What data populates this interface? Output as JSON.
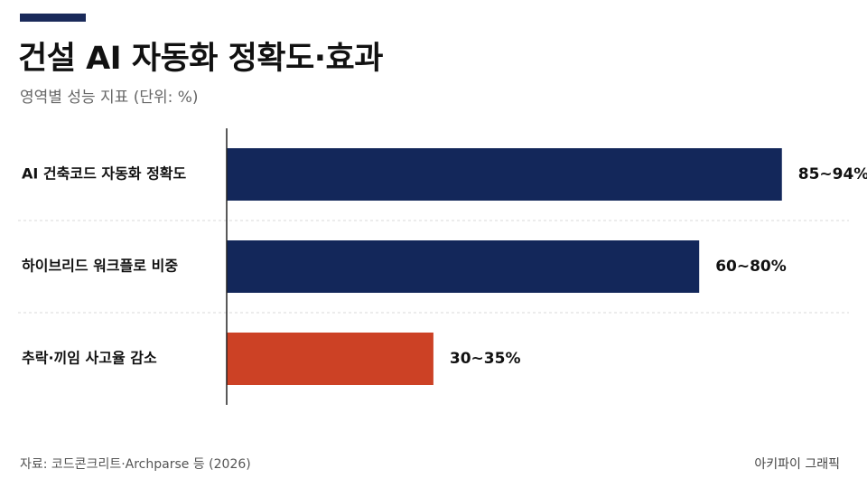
{
  "header": {
    "title": "건설 AI 자동화 정확도·효과",
    "subtitle": "영역별 성능 지표 (단위: %)"
  },
  "colors": {
    "navy": "#13275a",
    "red": "#cc4125",
    "accent": "#1a2a5a"
  },
  "chart_data": {
    "type": "bar",
    "orientation": "horizontal",
    "categories": [
      "AI 건축코드 자동화 정확도",
      "하이브리드 워크플로 비중",
      "추락·끼임 사고율 감소"
    ],
    "ranges": [
      [
        85,
        94
      ],
      [
        60,
        80
      ],
      [
        30,
        35
      ]
    ],
    "values": [
      94,
      80,
      35
    ],
    "value_labels": [
      "85~94%",
      "60~80%",
      "30~35%"
    ],
    "bar_colors": [
      "#13275a",
      "#13275a",
      "#cc4125"
    ],
    "xlim": [
      0,
      100
    ],
    "grid": "horizontal dashed separators",
    "legend": "none"
  },
  "footer": {
    "source": "자료: 코드콘크리트·Archparse 등 (2026)",
    "credit": "아키파이 그래픽"
  }
}
